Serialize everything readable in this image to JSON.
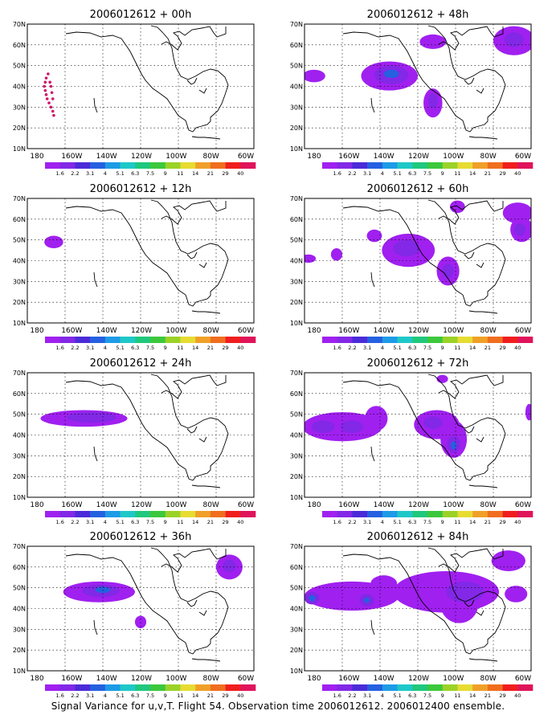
{
  "figure": {
    "caption": "Signal Variance for u,v,T. Flight 54. Observation time 2006012612. 2006012400 ensemble.",
    "colors": {
      "coast": "#000000",
      "grid": "#000000",
      "flight_track": "#d0146a"
    }
  },
  "colorbar": {
    "labels": [
      "1.6",
      "2.2",
      "3.1",
      "4",
      "5.1",
      "6.3",
      "7.5",
      "9",
      "11",
      "14",
      "21",
      "29",
      "40"
    ],
    "colors": [
      "#a020f0",
      "#8228e6",
      "#4b2bd9",
      "#2560e0",
      "#1e9be6",
      "#1fc8c8",
      "#20c87d",
      "#3cc83c",
      "#9bd228",
      "#e6dc32",
      "#f0a028",
      "#f06e1e",
      "#f01e1e",
      "#e0145a"
    ]
  },
  "chart_data": [
    {
      "type": "heatmap",
      "title": "2006012612 + 00h",
      "x_tick_labels": [
        "180",
        "160W",
        "140W",
        "120W",
        "100W",
        "80W",
        "60W"
      ],
      "y_tick_labels": [
        "10N",
        "20N",
        "30N",
        "40N",
        "50N",
        "60N",
        "70N"
      ],
      "lon_range": [
        -180,
        -60
      ],
      "lat_range": [
        10,
        70
      ],
      "grid": true,
      "flight_track": [
        [
          -169,
          46
        ],
        [
          -170,
          44
        ],
        [
          -170.5,
          42
        ],
        [
          -171,
          40
        ],
        [
          -170.5,
          38
        ],
        [
          -170,
          36
        ],
        [
          -169.5,
          34
        ],
        [
          -168.5,
          32
        ],
        [
          -167.5,
          30
        ],
        [
          -166.5,
          28
        ],
        [
          -166,
          26
        ],
        [
          -166.5,
          34
        ],
        [
          -167,
          37
        ],
        [
          -167.5,
          40
        ],
        [
          -168,
          42
        ]
      ],
      "variance_blobs": []
    },
    {
      "type": "heatmap",
      "title": "2006012612 + 12h",
      "x_tick_labels": [
        "180",
        "160W",
        "140W",
        "120W",
        "100W",
        "80W",
        "60W"
      ],
      "y_tick_labels": [
        "10N",
        "20N",
        "30N",
        "40N",
        "50N",
        "60N",
        "70N"
      ],
      "lon_range": [
        -180,
        -60
      ],
      "lat_range": [
        10,
        70
      ],
      "grid": true,
      "variance_blobs": [
        {
          "lon": -166,
          "lat": 49,
          "rx": 5,
          "ry": 3,
          "level": 0
        }
      ]
    },
    {
      "type": "heatmap",
      "title": "2006012612 + 24h",
      "x_tick_labels": [
        "180",
        "160W",
        "140W",
        "120W",
        "100W",
        "80W",
        "60W"
      ],
      "y_tick_labels": [
        "10N",
        "20N",
        "30N",
        "40N",
        "50N",
        "60N",
        "70N"
      ],
      "lon_range": [
        -180,
        -60
      ],
      "lat_range": [
        10,
        70
      ],
      "grid": true,
      "variance_blobs": [
        {
          "lon": -150,
          "lat": 48,
          "rx": 23,
          "ry": 4,
          "level": 0
        },
        {
          "lon": -146,
          "lat": 48.5,
          "rx": 13,
          "ry": 2.6,
          "level": 1
        }
      ]
    },
    {
      "type": "heatmap",
      "title": "2006012612 + 36h",
      "x_tick_labels": [
        "180",
        "160W",
        "140W",
        "120W",
        "100W",
        "80W",
        "60W"
      ],
      "y_tick_labels": [
        "10N",
        "20N",
        "30N",
        "40N",
        "50N",
        "60N",
        "70N"
      ],
      "lon_range": [
        -180,
        -60
      ],
      "lat_range": [
        10,
        70
      ],
      "grid": true,
      "variance_blobs": [
        {
          "lon": -142,
          "lat": 48,
          "rx": 19,
          "ry": 5,
          "level": 0
        },
        {
          "lon": -141,
          "lat": 48.5,
          "rx": 10,
          "ry": 3,
          "level": 1
        },
        {
          "lon": -140,
          "lat": 49,
          "rx": 4,
          "ry": 1.5,
          "level": 3
        },
        {
          "lon": -120,
          "lat": 33.5,
          "rx": 3,
          "ry": 3,
          "level": 0
        },
        {
          "lon": -73,
          "lat": 60,
          "rx": 7,
          "ry": 6,
          "level": 0
        },
        {
          "lon": -73,
          "lat": 60.5,
          "rx": 3.5,
          "ry": 3,
          "level": 1
        }
      ]
    },
    {
      "type": "heatmap",
      "title": "2006012612 + 48h",
      "x_tick_labels": [
        "180",
        "160W",
        "140W",
        "120W",
        "100W",
        "80W",
        "60W"
      ],
      "y_tick_labels": [
        "10N",
        "20N",
        "30N",
        "40N",
        "50N",
        "60N",
        "70N"
      ],
      "lon_range": [
        -180,
        -60
      ],
      "lat_range": [
        10,
        70
      ],
      "grid": true,
      "variance_blobs": [
        {
          "lon": -175,
          "lat": 45,
          "rx": 6,
          "ry": 3,
          "level": 0
        },
        {
          "lon": -135,
          "lat": 45,
          "rx": 15,
          "ry": 7,
          "level": 0
        },
        {
          "lon": -134,
          "lat": 45.5,
          "rx": 9,
          "ry": 4.5,
          "level": 1
        },
        {
          "lon": -134,
          "lat": 46,
          "rx": 4,
          "ry": 2,
          "level": 3
        },
        {
          "lon": -112,
          "lat": 32,
          "rx": 5,
          "ry": 7,
          "level": 0
        },
        {
          "lon": -112,
          "lat": 33,
          "rx": 2.5,
          "ry": 3.5,
          "level": 1
        },
        {
          "lon": -112,
          "lat": 61.5,
          "rx": 7,
          "ry": 3.5,
          "level": 0
        },
        {
          "lon": -69,
          "lat": 62,
          "rx": 11,
          "ry": 7,
          "level": 0
        },
        {
          "lon": -69,
          "lat": 62.5,
          "rx": 5,
          "ry": 3.5,
          "level": 1
        }
      ]
    },
    {
      "type": "heatmap",
      "title": "2006012612 + 60h",
      "x_tick_labels": [
        "180",
        "160W",
        "140W",
        "120W",
        "100W",
        "80W",
        "60W"
      ],
      "y_tick_labels": [
        "10N",
        "20N",
        "30N",
        "40N",
        "50N",
        "60N",
        "70N"
      ],
      "lon_range": [
        -180,
        -60
      ],
      "lat_range": [
        10,
        70
      ],
      "grid": true,
      "variance_blobs": [
        {
          "lon": -178,
          "lat": 41,
          "rx": 4,
          "ry": 2,
          "level": 0
        },
        {
          "lon": -163,
          "lat": 43,
          "rx": 3,
          "ry": 3,
          "level": 0
        },
        {
          "lon": -143,
          "lat": 52,
          "rx": 4,
          "ry": 3,
          "level": 0
        },
        {
          "lon": -125,
          "lat": 45,
          "rx": 14,
          "ry": 8,
          "level": 0
        },
        {
          "lon": -126,
          "lat": 46,
          "rx": 7,
          "ry": 4,
          "level": 1
        },
        {
          "lon": -104,
          "lat": 35,
          "rx": 6,
          "ry": 7,
          "level": 0
        },
        {
          "lon": -104,
          "lat": 35,
          "rx": 3,
          "ry": 3.5,
          "level": 1
        },
        {
          "lon": -99,
          "lat": 66,
          "rx": 4,
          "ry": 3,
          "level": 0
        },
        {
          "lon": -67,
          "lat": 63,
          "rx": 8,
          "ry": 5,
          "level": 0
        },
        {
          "lon": -65,
          "lat": 55,
          "rx": 6,
          "ry": 6,
          "level": 0
        },
        {
          "lon": -66,
          "lat": 55,
          "rx": 3,
          "ry": 3,
          "level": 1
        }
      ]
    },
    {
      "type": "heatmap",
      "title": "2006012612 + 72h",
      "x_tick_labels": [
        "180",
        "160W",
        "140W",
        "120W",
        "100W",
        "80W",
        "60W"
      ],
      "y_tick_labels": [
        "10N",
        "20N",
        "30N",
        "40N",
        "50N",
        "60N",
        "70N"
      ],
      "lon_range": [
        -180,
        -60
      ],
      "lat_range": [
        10,
        70
      ],
      "grid": true,
      "variance_blobs": [
        {
          "lon": -160,
          "lat": 44,
          "rx": 21,
          "ry": 7,
          "level": 0
        },
        {
          "lon": -170,
          "lat": 44,
          "rx": 6,
          "ry": 3,
          "level": 1
        },
        {
          "lon": -155,
          "lat": 44,
          "rx": 6,
          "ry": 3,
          "level": 1
        },
        {
          "lon": -142,
          "lat": 48,
          "rx": 6,
          "ry": 6,
          "level": 0
        },
        {
          "lon": -110,
          "lat": 45,
          "rx": 12,
          "ry": 7,
          "level": 0
        },
        {
          "lon": -112,
          "lat": 46,
          "rx": 5,
          "ry": 3,
          "level": 1
        },
        {
          "lon": -101,
          "lat": 38,
          "rx": 7,
          "ry": 9,
          "level": 0
        },
        {
          "lon": -101,
          "lat": 35.5,
          "rx": 3.5,
          "ry": 4,
          "level": 1
        },
        {
          "lon": -101,
          "lat": 35,
          "rx": 1.5,
          "ry": 2,
          "level": 3
        },
        {
          "lon": -107,
          "lat": 67,
          "rx": 3,
          "ry": 2,
          "level": 0
        },
        {
          "lon": -61,
          "lat": 51,
          "rx": 2,
          "ry": 4,
          "level": 0
        }
      ]
    },
    {
      "type": "heatmap",
      "title": "2006012612 + 84h",
      "x_tick_labels": [
        "180",
        "160W",
        "140W",
        "120W",
        "100W",
        "80W",
        "60W"
      ],
      "y_tick_labels": [
        "10N",
        "20N",
        "30N",
        "40N",
        "50N",
        "60N",
        "70N"
      ],
      "lon_range": [
        -180,
        -60
      ],
      "lat_range": [
        10,
        70
      ],
      "grid": true,
      "variance_blobs": [
        {
          "lon": -155,
          "lat": 46,
          "rx": 25,
          "ry": 7,
          "level": 0
        },
        {
          "lon": -176,
          "lat": 45,
          "rx": 4,
          "ry": 3,
          "level": 1
        },
        {
          "lon": -176,
          "lat": 45,
          "rx": 1.8,
          "ry": 1.5,
          "level": 3
        },
        {
          "lon": -147,
          "lat": 44,
          "rx": 4,
          "ry": 3,
          "level": 1
        },
        {
          "lon": -147,
          "lat": 44,
          "rx": 1.5,
          "ry": 1.3,
          "level": 3
        },
        {
          "lon": -138,
          "lat": 52,
          "rx": 7,
          "ry": 4,
          "level": 0
        },
        {
          "lon": -105,
          "lat": 48,
          "rx": 28,
          "ry": 10,
          "level": 0
        },
        {
          "lon": -98,
          "lat": 42,
          "rx": 10,
          "ry": 9,
          "level": 0
        },
        {
          "lon": -95,
          "lat": 48,
          "rx": 10,
          "ry": 5,
          "level": 1
        },
        {
          "lon": -68,
          "lat": 47,
          "rx": 6,
          "ry": 4,
          "level": 0
        },
        {
          "lon": -72,
          "lat": 63,
          "rx": 9,
          "ry": 5,
          "level": 0
        }
      ]
    }
  ]
}
